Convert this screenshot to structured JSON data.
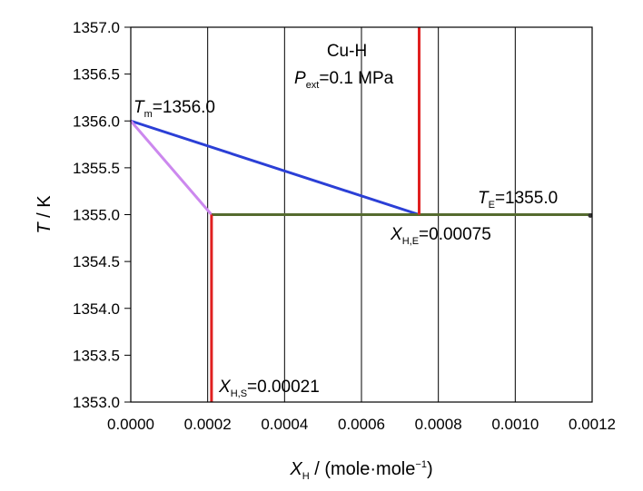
{
  "chart_data": {
    "type": "line",
    "title": "",
    "xlabel": {
      "main": "X",
      "sub": "H",
      "rest": " / (mole·mole",
      "sup": "−1",
      "close": ")"
    },
    "ylabel": {
      "main": "T",
      "rest": " / K"
    },
    "xlim": [
      0.0,
      0.0012
    ],
    "ylim": [
      1353.0,
      1357.0
    ],
    "x_ticks": [
      "0.0000",
      "0.0002",
      "0.0004",
      "0.0006",
      "0.0008",
      "0.0010",
      "0.0012"
    ],
    "y_ticks": [
      "1353.0",
      "1353.5",
      "1354.0",
      "1354.5",
      "1355.0",
      "1355.5",
      "1356.0",
      "1356.5",
      "1357.0"
    ],
    "grid": "vertical",
    "series": [
      {
        "color": "#2b3fd6",
        "points": [
          [
            0.0,
            1356.0
          ],
          [
            0.00075,
            1355.0
          ]
        ]
      },
      {
        "color": "#cc88ee",
        "points": [
          [
            0.0,
            1356.0
          ],
          [
            0.00021,
            1355.0
          ]
        ]
      },
      {
        "color": "#556b2f",
        "points": [
          [
            0.00021,
            1355.0
          ],
          [
            0.0012,
            1355.0
          ]
        ]
      },
      {
        "color": "#e02020",
        "points": [
          [
            0.00075,
            1355.0
          ],
          [
            0.00075,
            1357.0
          ]
        ]
      },
      {
        "color": "#e02020",
        "points": [
          [
            0.00021,
            1353.0
          ],
          [
            0.00021,
            1355.0
          ]
        ]
      }
    ],
    "annotations": [
      {
        "kind": "plain",
        "lines": [
          "Cu-H"
        ]
      },
      {
        "kind": "sub",
        "main": "P",
        "sub": "ext",
        "rest": "=0.1 MPa"
      },
      {
        "kind": "sub",
        "main": "T",
        "sub": "m",
        "rest": "=1356.0"
      },
      {
        "kind": "sub",
        "main": "T",
        "sub": "E",
        "rest": "=1355.0"
      },
      {
        "kind": "sub",
        "main": "X",
        "sub": "H,E",
        "rest": "=0.00075"
      },
      {
        "kind": "sub",
        "main": "X",
        "sub": "H,S",
        "rest": "=0.00021"
      }
    ]
  }
}
